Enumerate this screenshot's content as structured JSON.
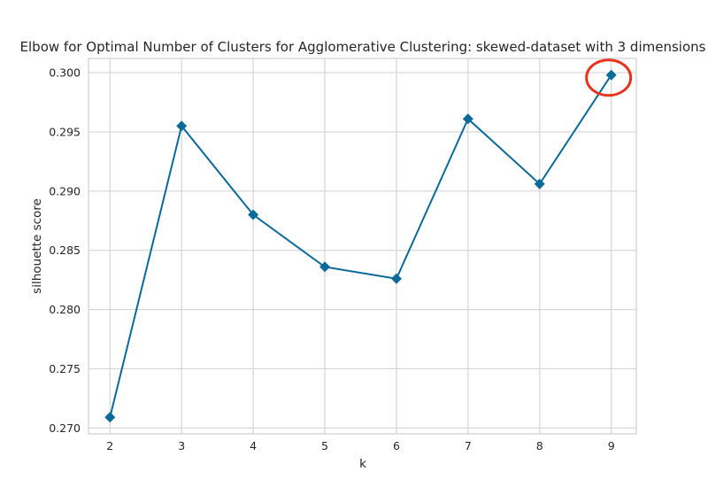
{
  "chart_data": {
    "type": "line",
    "title": "Elbow for Optimal Number of Clusters for Agglomerative Clustering: skewed-dataset with 3 dimensions",
    "xlabel": "k",
    "ylabel": "silhouette score",
    "x": [
      2,
      3,
      4,
      5,
      6,
      7,
      8,
      9
    ],
    "series": [
      {
        "values": [
          0.2709,
          0.2955,
          0.288,
          0.2836,
          0.2826,
          0.2961,
          0.2906,
          0.2998
        ]
      }
    ],
    "xticks": [
      "2",
      "3",
      "4",
      "5",
      "6",
      "7",
      "8",
      "9"
    ],
    "yticks": [
      "0.270",
      "0.275",
      "0.280",
      "0.285",
      "0.290",
      "0.295",
      "0.300"
    ],
    "xlim": [
      1.7,
      9.35
    ],
    "ylim": [
      0.2695,
      0.3012
    ],
    "grid": true,
    "marker": "diamond",
    "colors": {
      "line": "#0a6b9a",
      "annotation": "#e8341c"
    },
    "annotation": {
      "shape": "circle",
      "x": 9,
      "y": 0.2998
    }
  }
}
